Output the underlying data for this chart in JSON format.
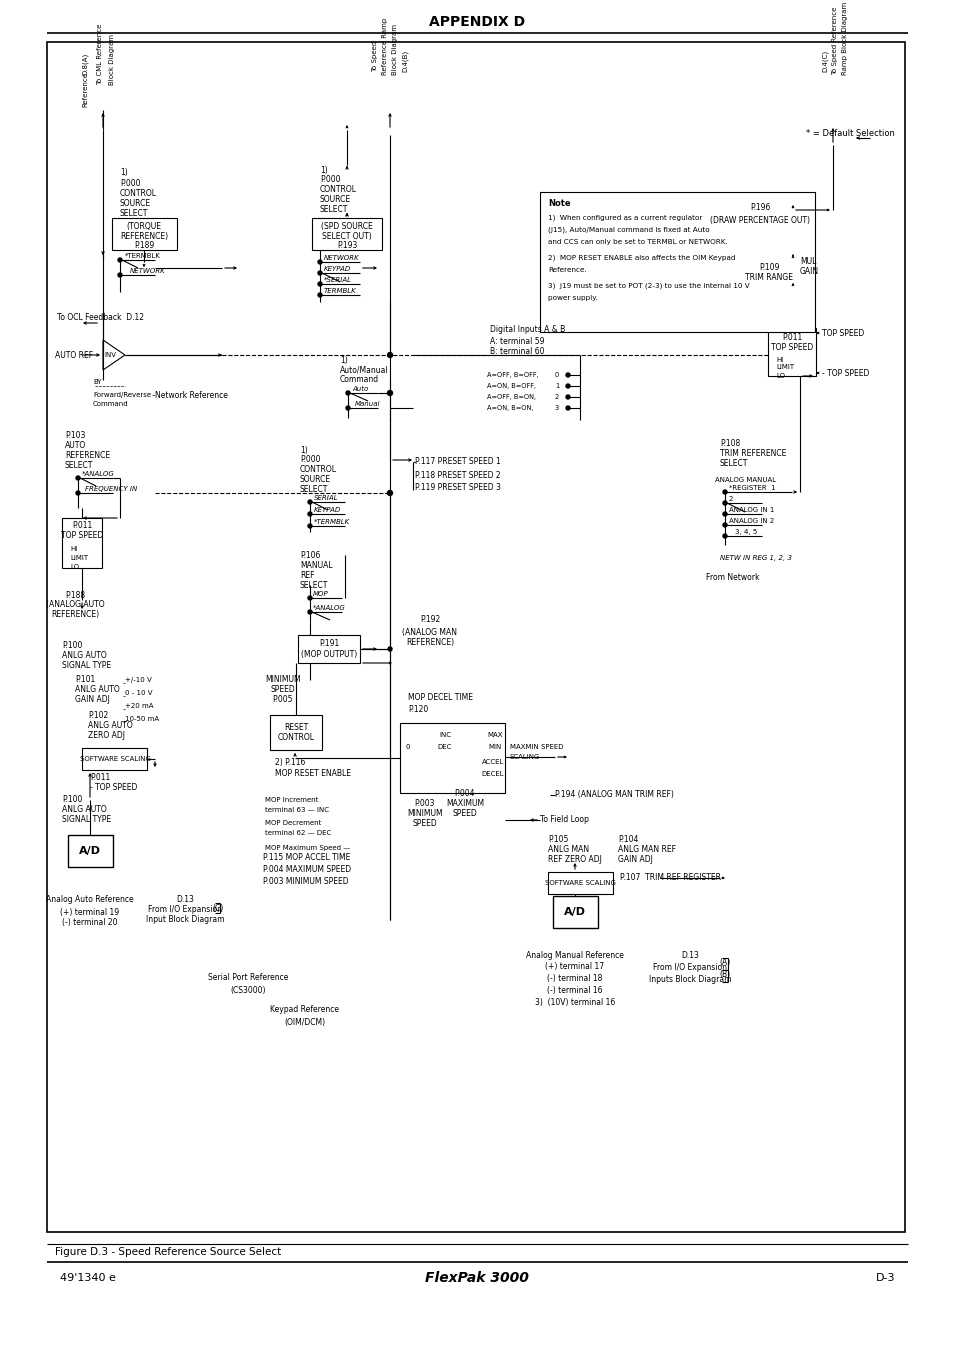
{
  "title": "APPENDIX D",
  "figure_caption": "Figure D.3 - Speed Reference Source Select",
  "footer_left": "49'1340 e",
  "footer_center": "FlexPak 3000",
  "footer_right": "D-3",
  "bg_color": "#ffffff"
}
